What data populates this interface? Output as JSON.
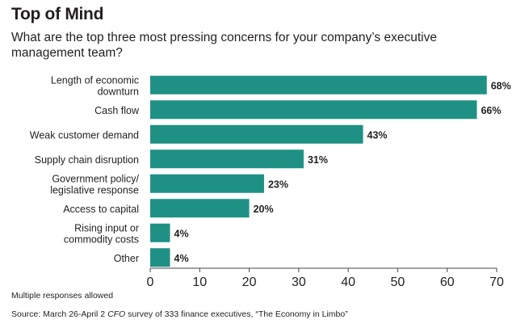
{
  "title": "Top of Mind",
  "subtitle": "What are the top three most pressing concerns for your company’s executive management team?",
  "note": "Multiple responses allowed",
  "source": {
    "prefix": "Source: March 26-April 2 ",
    "italic": "CFO",
    "suffix": " survey of 333 finance executives, “The Economy in Limbo”"
  },
  "colors": {
    "bar": "#1f9184",
    "text": "#231f20",
    "axis": "#444444"
  },
  "chart_data": {
    "type": "bar",
    "orientation": "horizontal",
    "categories": [
      "Length of economic downturn",
      "Cash flow",
      "Weak customer demand",
      "Supply chain disruption",
      "Government policy/ legislative response",
      "Access to capital",
      "Rising input or commodity costs",
      "Other"
    ],
    "category_lines": [
      [
        "Length of economic",
        "downturn"
      ],
      [
        "Cash flow"
      ],
      [
        "Weak customer demand"
      ],
      [
        "Supply chain disruption"
      ],
      [
        "Government policy/",
        "legislative response"
      ],
      [
        "Access to capital"
      ],
      [
        "Rising input or",
        "commodity costs"
      ],
      [
        "Other"
      ]
    ],
    "values": [
      68,
      66,
      43,
      31,
      23,
      20,
      4,
      4
    ],
    "value_labels": [
      "68%",
      "66%",
      "43%",
      "31%",
      "23%",
      "20%",
      "4%",
      "4%"
    ],
    "xlim": [
      0,
      70
    ],
    "x_ticks": [
      0,
      10,
      20,
      30,
      40,
      50,
      60,
      70
    ],
    "grid": false
  }
}
